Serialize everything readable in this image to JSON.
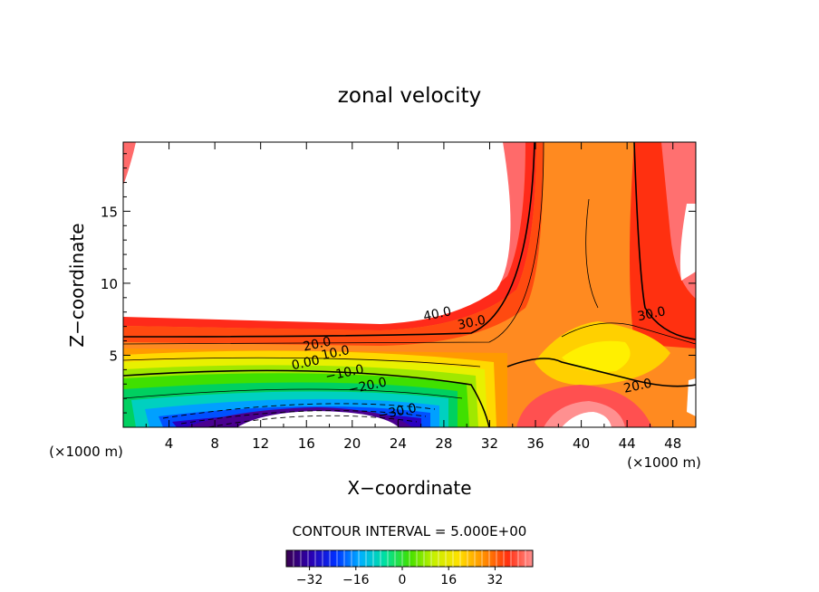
{
  "chart_data": {
    "type": "heatmap",
    "title": "zonal velocity",
    "xlabel": "X−coordinate",
    "ylabel": "Z−coordinate",
    "x_unit": "(×1000 m)",
    "x_unit_right": "(×1000 m)",
    "xlim": [
      0,
      50
    ],
    "ylim": [
      0,
      19.8
    ],
    "x_ticks": [
      4,
      8,
      12,
      16,
      20,
      24,
      28,
      32,
      36,
      40,
      44,
      48
    ],
    "y_ticks": [
      5,
      10,
      15
    ],
    "contour_interval_text": "CONTOUR INTERVAL = 5.000E+00",
    "colorbar": {
      "range": [
        -40,
        45
      ],
      "ticks": [
        -32,
        -16,
        0,
        16,
        32
      ],
      "tick_labels": [
        "−32",
        "−16",
        "0",
        "16",
        "32"
      ]
    },
    "contour_labels": [
      {
        "text": "40.0",
        "x": 27.5,
        "z": 7.6
      },
      {
        "text": "30.0",
        "x": 30.5,
        "z": 7.0
      },
      {
        "text": "30.0",
        "x": 46.2,
        "z": 7.6
      },
      {
        "text": "20.0",
        "x": 17.0,
        "z": 5.5
      },
      {
        "text": "10.0",
        "x": 18.6,
        "z": 4.9
      },
      {
        "text": "0.00",
        "x": 16.0,
        "z": 4.2
      },
      {
        "text": "−10.0",
        "x": 19.4,
        "z": 3.5
      },
      {
        "text": "−20.0",
        "x": 21.4,
        "z": 2.6
      },
      {
        "text": "−30.0",
        "x": 24.0,
        "z": 0.8
      },
      {
        "text": "20.0",
        "x": 45.0,
        "z": 2.6
      }
    ]
  }
}
